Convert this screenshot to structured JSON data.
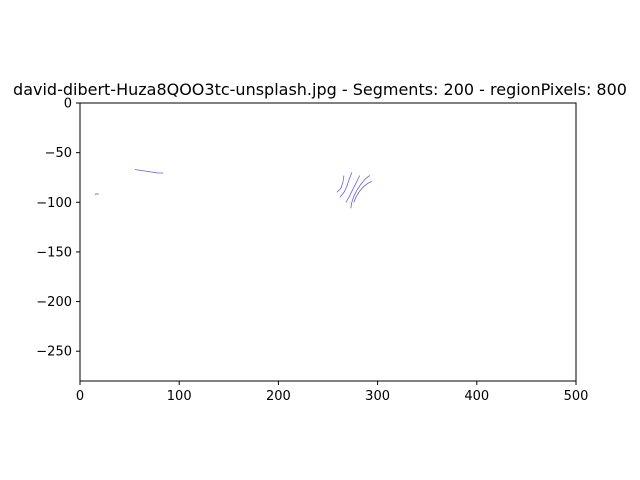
{
  "figure": {
    "background": "#ffffff"
  },
  "chart_data": {
    "type": "line",
    "title": "david-dibert-Huza8QOO3tc-unsplash.jpg - Segments: 200 - regionPixels: 800",
    "xlabel": "",
    "ylabel": "",
    "xlim": [
      0,
      500
    ],
    "ylim": [
      -280,
      0
    ],
    "x_ticks": [
      0,
      100,
      200,
      300,
      400,
      500
    ],
    "y_ticks": [
      0,
      -50,
      -100,
      -150,
      -200,
      -250
    ],
    "x_tick_labels": [
      "0",
      "100",
      "200",
      "300",
      "400",
      "500"
    ],
    "y_tick_labels": [
      "0",
      "−50",
      "−100",
      "−150",
      "−200",
      "−250"
    ],
    "grid": false,
    "line_color": "#6a5fd6",
    "series": [
      {
        "points": [
          [
            55,
            -67
          ],
          [
            62,
            -68
          ],
          [
            72,
            -69.5
          ],
          [
            78,
            -70.5
          ],
          [
            84,
            -70.5
          ]
        ]
      },
      {
        "points": [
          [
            15,
            -92
          ],
          [
            17,
            -91.5
          ],
          [
            19,
            -92
          ]
        ]
      },
      {
        "points": [
          [
            259,
            -90
          ],
          [
            263,
            -86
          ],
          [
            265,
            -80
          ],
          [
            266,
            -73
          ]
        ]
      },
      {
        "points": [
          [
            262,
            -95
          ],
          [
            266,
            -90
          ],
          [
            269,
            -84
          ],
          [
            271,
            -78
          ],
          [
            274,
            -70
          ]
        ]
      },
      {
        "points": [
          [
            268,
            -100
          ],
          [
            271,
            -95
          ],
          [
            274,
            -89
          ],
          [
            277,
            -83
          ],
          [
            280,
            -77
          ],
          [
            282,
            -73
          ]
        ]
      },
      {
        "points": [
          [
            273,
            -106
          ],
          [
            274,
            -100
          ],
          [
            276,
            -94
          ],
          [
            279,
            -88
          ],
          [
            283,
            -82
          ],
          [
            288,
            -76
          ],
          [
            292,
            -73
          ]
        ]
      },
      {
        "points": [
          [
            276,
            -100
          ],
          [
            278,
            -95
          ],
          [
            281,
            -90
          ],
          [
            285,
            -85
          ],
          [
            290,
            -81
          ],
          [
            294,
            -79
          ]
        ]
      }
    ]
  }
}
